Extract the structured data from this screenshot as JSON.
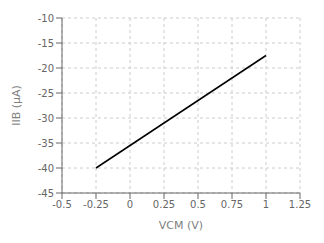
{
  "chart_data": {
    "type": "line",
    "x": [
      -0.25,
      1.0
    ],
    "values": [
      -40.0,
      -17.5
    ],
    "color": "#000000",
    "xlabel": "VCM (V)",
    "ylabel": "IIB (μA)",
    "xlim": [
      -0.5,
      1.25
    ],
    "ylim": [
      -45,
      -10
    ],
    "xticks": [
      -0.5,
      -0.25,
      0,
      0.25,
      0.5,
      0.75,
      1.0,
      1.25
    ],
    "yticks": [
      -45,
      -40,
      -35,
      -30,
      -25,
      -20,
      -15,
      -10
    ],
    "grid": true
  }
}
